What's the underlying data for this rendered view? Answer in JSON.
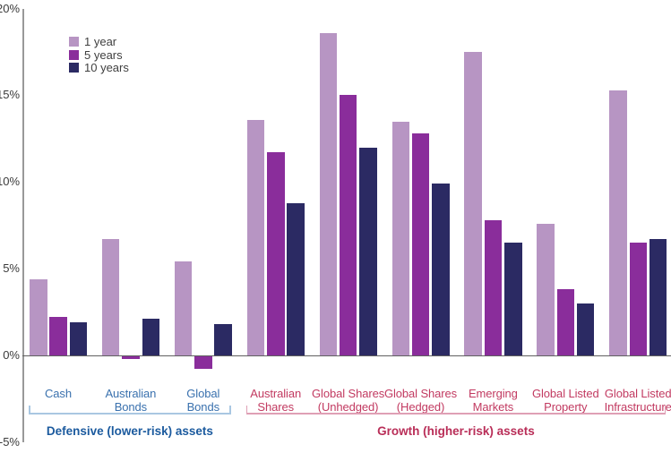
{
  "legend": {
    "items": [
      {
        "label": "1 year",
        "color": "#b795c3"
      },
      {
        "label": "5 years",
        "color": "#8a2d9b"
      },
      {
        "label": "10 years",
        "color": "#2b2a63"
      }
    ]
  },
  "chart_data": {
    "type": "bar",
    "title": "",
    "xlabel": "",
    "ylabel": "",
    "ylim": [
      -5,
      20
    ],
    "grid": false,
    "legend_position": "top-left",
    "yticks": [
      {
        "value": 20,
        "label": "20%"
      },
      {
        "value": 15,
        "label": "15%"
      },
      {
        "value": 10,
        "label": "10%"
      },
      {
        "value": 5,
        "label": "5%"
      },
      {
        "value": 0,
        "label": "0%"
      },
      {
        "value": -5,
        "label": "-5%"
      }
    ],
    "categories": [
      "Cash",
      "Australian Bonds",
      "Global Bonds",
      "Australian Shares",
      "Global Shares (Unhedged)",
      "Global Shares (Hedged)",
      "Emerging Markets",
      "Global Listed Property",
      "Global Listed Infrastructure"
    ],
    "category_lines": [
      [
        "Cash"
      ],
      [
        "Australian",
        "Bonds"
      ],
      [
        "Global",
        "Bonds"
      ],
      [
        "Australian",
        "Shares"
      ],
      [
        "Global Shares",
        "(Unhedged)"
      ],
      [
        "Global Shares",
        "(Hedged)"
      ],
      [
        "Emerging",
        "Markets"
      ],
      [
        "Global Listed",
        "Property"
      ],
      [
        "Global Listed",
        "Infrastructure"
      ]
    ],
    "series": [
      {
        "name": "1 year",
        "color": "#b795c3",
        "values": [
          4.4,
          6.7,
          5.4,
          13.6,
          18.6,
          13.5,
          17.5,
          7.6,
          15.3
        ]
      },
      {
        "name": "5 years",
        "color": "#8a2d9b",
        "values": [
          2.2,
          -0.2,
          -0.8,
          11.7,
          15.0,
          12.8,
          7.8,
          3.8,
          6.5
        ]
      },
      {
        "name": "10 years",
        "color": "#2b2a63",
        "values": [
          1.9,
          2.1,
          1.8,
          8.8,
          12.0,
          9.9,
          6.5,
          3.0,
          6.7
        ]
      }
    ],
    "groups": [
      {
        "label": "Defensive (lower-risk) assets",
        "category_range": [
          0,
          2
        ],
        "caption_color": "#1b5a9e",
        "category_color": "#3a71ae",
        "bracket_color": "#a9c7e2"
      },
      {
        "label": "Growth (higher-risk) assets",
        "category_range": [
          3,
          8
        ],
        "caption_color": "#b92e58",
        "category_color": "#c23a61",
        "bracket_color": "#dfa0b5"
      }
    ],
    "axis_color": "#999999",
    "zero_line_color": "#606060"
  }
}
